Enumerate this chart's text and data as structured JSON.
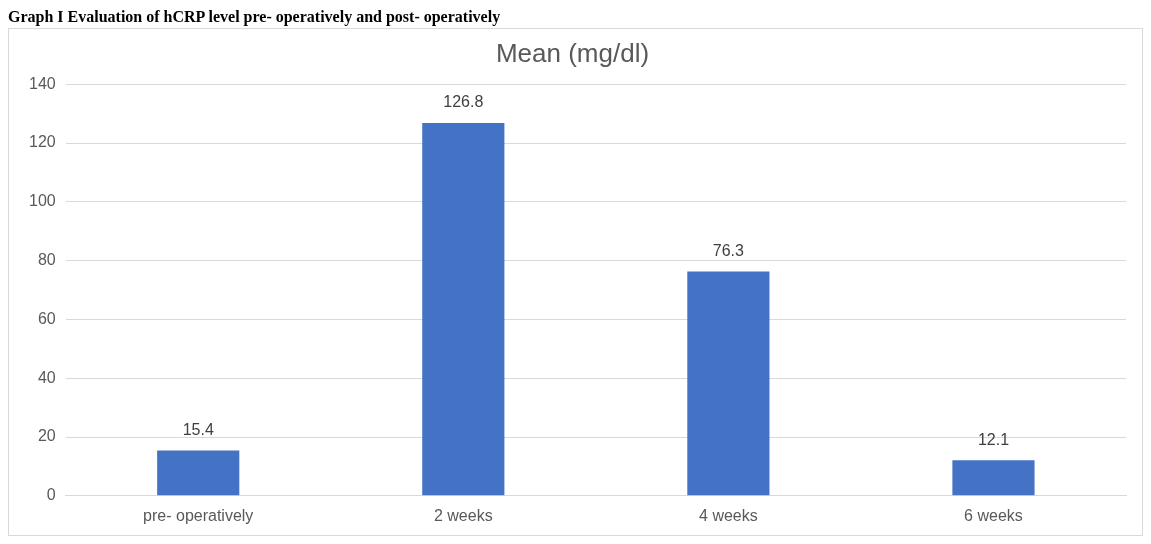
{
  "chart_data": {
    "type": "bar",
    "title": "Graph I Evaluation of hCRP level pre- operatively and post- operatively",
    "subtitle": "Mean (mg/dl)",
    "categories": [
      "pre- operatively",
      "2 weeks",
      "4 weeks",
      "6 weeks"
    ],
    "values": [
      15.4,
      126.8,
      76.3,
      12.1
    ],
    "color": "#4472c4",
    "ylim": [
      0,
      140
    ],
    "yticks": [
      0,
      20,
      40,
      60,
      80,
      100,
      120,
      140
    ],
    "grid": "y",
    "legend": false,
    "data_labels": true
  }
}
